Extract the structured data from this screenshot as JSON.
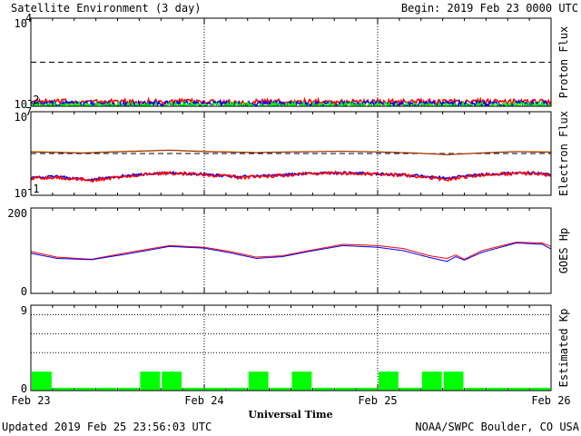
{
  "header": {
    "title": "Satellite Environment (3 day)",
    "begin": "Begin:  2019 Feb 23 0000 UTC"
  },
  "footer": {
    "updated": "Updated 2019 Feb 25 23:56:03 UTC",
    "credit": "NOAA/SWPC Boulder, CO USA",
    "xlabel": "Universal Time"
  },
  "x_ticks": [
    "Feb 23",
    "Feb 24",
    "Feb 25",
    "Feb 26"
  ],
  "colors": {
    "red": "#ff0000",
    "blue": "#0000ff",
    "green": "#00ff00",
    "orange": "#ffa500",
    "brown": "#8b2020",
    "black": "#000000"
  },
  "chart_data": [
    {
      "type": "line",
      "name": "proton",
      "ylabel": "Proton Flux",
      "ylog": true,
      "ylim": [
        0.01,
        10000
      ],
      "y_tick_labels": [
        "10",
        "10"
      ],
      "y_tick_exps": [
        "4",
        "-2"
      ],
      "threshold": 10,
      "x_days": [
        0,
        3
      ],
      "series": [
        {
          "color": "#ff0000",
          "level": 0.02,
          "jitter": 0.18
        },
        {
          "color": "#0000ff",
          "level": 0.015,
          "jitter": 0.18
        },
        {
          "color": "#00ff00",
          "level": 0.011,
          "jitter": 0.22
        }
      ]
    },
    {
      "type": "line",
      "name": "electron",
      "ylabel": "Electron Flux",
      "ylog": true,
      "ylim": [
        0.1,
        10000000
      ],
      "y_tick_labels": [
        "10",
        "10"
      ],
      "y_tick_exps": [
        "7",
        "-1"
      ],
      "threshold": 1000,
      "x_days": [
        0,
        3
      ],
      "series": [
        {
          "color": "#ffa500",
          "x": [
            0,
            0.3,
            0.6,
            0.8,
            1.0,
            1.3,
            1.5,
            1.8,
            2.0,
            2.2,
            2.4,
            2.6,
            2.8,
            3.0
          ],
          "y": [
            1600,
            1200,
            1800,
            2200,
            1700,
            1300,
            1500,
            1700,
            1500,
            1200,
            800,
            1200,
            1600,
            1500
          ]
        },
        {
          "color": "#8b2020",
          "x": [
            0,
            0.3,
            0.6,
            0.8,
            1.0,
            1.3,
            1.5,
            1.8,
            2.0,
            2.2,
            2.4,
            2.6,
            2.8,
            3.0
          ],
          "y": [
            1400,
            1100,
            1600,
            2000,
            1500,
            1200,
            1400,
            1600,
            1400,
            1100,
            750,
            1100,
            1500,
            1300
          ]
        },
        {
          "color": "#0000ff",
          "jitter": 0.12,
          "x": [
            0,
            0.15,
            0.35,
            0.5,
            0.7,
            0.85,
            1.0,
            1.2,
            1.4,
            1.6,
            1.8,
            2.0,
            2.2,
            2.4,
            2.55,
            2.7,
            2.9,
            3.0
          ],
          "y": [
            5,
            6,
            3,
            6,
            12,
            14,
            10,
            6,
            8,
            12,
            14,
            12,
            8,
            4,
            8,
            12,
            14,
            9
          ]
        },
        {
          "color": "#ff0000",
          "jitter": 0.15,
          "x": [
            0,
            0.15,
            0.35,
            0.5,
            0.7,
            0.85,
            1.0,
            1.2,
            1.4,
            1.6,
            1.8,
            2.0,
            2.2,
            2.4,
            2.55,
            2.7,
            2.9,
            3.0
          ],
          "y": [
            4,
            5,
            2.5,
            5,
            11,
            13,
            9,
            5,
            7,
            11,
            13,
            11,
            7,
            3,
            7,
            11,
            13,
            8
          ]
        }
      ]
    },
    {
      "type": "line",
      "name": "hp",
      "ylabel": "GOES Hp",
      "ylog": false,
      "ylim": [
        0,
        200
      ],
      "y_tick_labels": [
        "200",
        "0"
      ],
      "x_days": [
        0,
        3
      ],
      "series": [
        {
          "color": "#ff0000",
          "x": [
            0,
            0.15,
            0.35,
            0.55,
            0.8,
            1.0,
            1.15,
            1.3,
            1.45,
            1.6,
            1.8,
            2.0,
            2.15,
            2.3,
            2.4,
            2.45,
            2.5,
            2.6,
            2.8,
            2.95,
            3.0
          ],
          "y": [
            98,
            85,
            80,
            95,
            112,
            108,
            98,
            85,
            88,
            100,
            115,
            112,
            105,
            88,
            82,
            90,
            80,
            100,
            120,
            118,
            110
          ]
        },
        {
          "color": "#0000ff",
          "x": [
            0,
            0.15,
            0.35,
            0.55,
            0.8,
            1.0,
            1.15,
            1.3,
            1.45,
            1.6,
            1.8,
            2.0,
            2.15,
            2.3,
            2.4,
            2.45,
            2.5,
            2.6,
            2.8,
            2.95,
            3.0
          ],
          "y": [
            94,
            82,
            79,
            92,
            110,
            106,
            95,
            82,
            86,
            98,
            112,
            108,
            100,
            84,
            75,
            86,
            78,
            96,
            118,
            115,
            104
          ]
        }
      ]
    },
    {
      "type": "bar",
      "name": "kp",
      "ylabel": "Estimated Kp",
      "ylim": [
        0,
        9
      ],
      "y_tick_labels": [
        "9",
        "0"
      ],
      "dotted_levels": [
        4,
        6,
        8
      ],
      "bar_color": "#00ff00",
      "values": [
        2,
        0.3,
        0.3,
        0.3,
        0.3,
        2,
        2,
        0.3,
        0.3,
        0.3,
        2,
        0.3,
        2,
        0.3,
        0.3,
        0.3,
        2,
        0.3,
        2,
        2,
        0.3,
        0.3,
        0.3,
        0.3
      ]
    }
  ]
}
